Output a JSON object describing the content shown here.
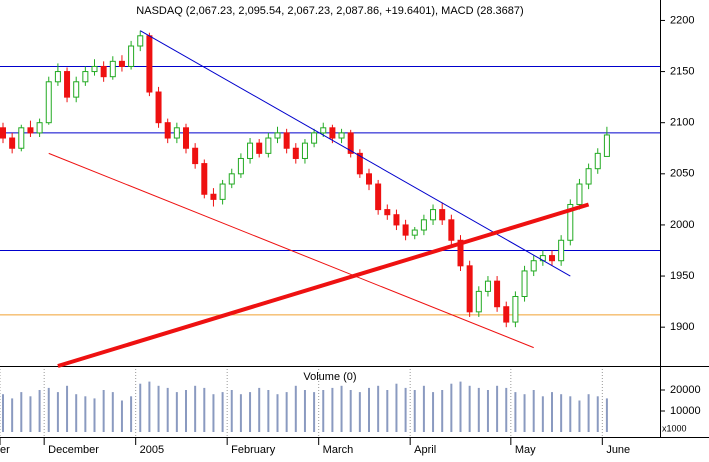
{
  "chart_data": {
    "type": "candlestick",
    "title": "NASDAQ (2,067.23, 2,095.54, 2,067.23, 2,087.86, +19.6401), MACD (28.3687)",
    "categories": [
      "er",
      null,
      null,
      null,
      null,
      "December",
      null,
      null,
      null,
      null,
      null,
      null,
      null,
      null,
      null,
      "2005",
      null,
      null,
      null,
      null,
      null,
      null,
      null,
      null,
      null,
      "February",
      null,
      null,
      null,
      null,
      null,
      null,
      null,
      null,
      null,
      "March",
      null,
      null,
      null,
      null,
      null,
      null,
      null,
      null,
      null,
      "April",
      null,
      null,
      null,
      null,
      null,
      null,
      null,
      null,
      null,
      null,
      "May",
      null,
      null,
      null,
      null,
      null,
      null,
      null,
      null,
      null,
      "June"
    ],
    "open": [
      2095,
      2085,
      2075,
      2095,
      2090,
      2100,
      2140,
      2150,
      2125,
      2140,
      2150,
      2155,
      2145,
      2160,
      2155,
      2175,
      2185,
      2130,
      2100,
      2085,
      2095,
      2075,
      2060,
      2030,
      2025,
      2040,
      2050,
      2065,
      2080,
      2070,
      2085,
      2090,
      2075,
      2065,
      2080,
      2090,
      2095,
      2085,
      2090,
      2070,
      2050,
      2040,
      2015,
      2010,
      2000,
      1990,
      1995,
      2005,
      2015,
      2005,
      1985,
      1960,
      1915,
      1935,
      1945,
      1920,
      1905,
      1930,
      1955,
      1965,
      1970,
      1965,
      1985,
      2020,
      2040,
      2055,
      2067
    ],
    "high": [
      2100,
      2090,
      2098,
      2102,
      2104,
      2145,
      2158,
      2154,
      2145,
      2155,
      2162,
      2160,
      2165,
      2166,
      2180,
      2190,
      2188,
      2135,
      2104,
      2100,
      2099,
      2080,
      2064,
      2036,
      2044,
      2055,
      2070,
      2085,
      2084,
      2090,
      2096,
      2094,
      2080,
      2084,
      2094,
      2100,
      2098,
      2094,
      2093,
      2074,
      2055,
      2044,
      2020,
      2015,
      2005,
      1998,
      2010,
      2020,
      2022,
      2010,
      1990,
      1965,
      1940,
      1950,
      1950,
      1925,
      1935,
      1960,
      1970,
      1975,
      1975,
      1990,
      2025,
      2045,
      2060,
      2075,
      2096
    ],
    "low": [
      2080,
      2070,
      2072,
      2086,
      2086,
      2098,
      2136,
      2120,
      2120,
      2136,
      2146,
      2140,
      2142,
      2150,
      2152,
      2170,
      2126,
      2095,
      2080,
      2080,
      2070,
      2055,
      2026,
      2018,
      2020,
      2036,
      2046,
      2060,
      2066,
      2066,
      2080,
      2070,
      2060,
      2060,
      2076,
      2086,
      2080,
      2080,
      2066,
      2046,
      2034,
      2010,
      2005,
      1995,
      1985,
      1986,
      1990,
      2000,
      2000,
      1980,
      1955,
      1910,
      1910,
      1930,
      1915,
      1900,
      1900,
      1925,
      1950,
      1960,
      1960,
      1960,
      1980,
      2015,
      2035,
      2050,
      2067
    ],
    "close": [
      2085,
      2075,
      2095,
      2090,
      2100,
      2140,
      2150,
      2125,
      2140,
      2150,
      2155,
      2145,
      2160,
      2155,
      2175,
      2185,
      2130,
      2100,
      2085,
      2095,
      2075,
      2060,
      2030,
      2025,
      2040,
      2050,
      2065,
      2080,
      2070,
      2085,
      2090,
      2075,
      2065,
      2080,
      2090,
      2095,
      2085,
      2090,
      2070,
      2050,
      2040,
      2015,
      2010,
      2000,
      1990,
      1995,
      2005,
      2015,
      2005,
      1985,
      1960,
      1915,
      1935,
      1945,
      1920,
      1905,
      1930,
      1955,
      1965,
      1970,
      1965,
      1985,
      2020,
      2040,
      2055,
      2070,
      2088
    ],
    "up_color": "#22aa22",
    "down_color": "#ee1111",
    "ylim": [
      1863,
      2220
    ],
    "yticks": [
      1900,
      1950,
      2000,
      2050,
      2100,
      2150,
      2200
    ],
    "horizontal_lines": [
      {
        "value": 2155,
        "color": "#0000cc"
      },
      {
        "value": 2090,
        "color": "#0000cc"
      },
      {
        "value": 1975,
        "color": "#0000cc"
      },
      {
        "value": 1912,
        "color": "#f0a030"
      }
    ],
    "trend_lines": [
      {
        "x": [
          15,
          62
        ],
        "y": [
          2190,
          1950
        ],
        "color": "#0000cc",
        "width": 1
      },
      {
        "x": [
          5,
          58
        ],
        "y": [
          2070,
          1880
        ],
        "color": "#ee1111",
        "width": 1
      },
      {
        "x": [
          6,
          64
        ],
        "y": [
          1862,
          2020
        ],
        "color": "#ee1111",
        "width": 4
      }
    ],
    "volume": {
      "title": "Volume (0)",
      "unit_label": "x1000",
      "color": "#8a9ac0",
      "values": [
        18000,
        16000,
        19000,
        17000,
        20000,
        21000,
        19000,
        22000,
        18000,
        17000,
        16000,
        20000,
        19000,
        15000,
        17000,
        23000,
        24000,
        22000,
        21000,
        19000,
        20000,
        22000,
        21000,
        18000,
        19000,
        20000,
        18000,
        19000,
        21000,
        20000,
        18000,
        19000,
        22000,
        20000,
        19000,
        20000,
        21000,
        22000,
        20000,
        19000,
        21000,
        22000,
        20000,
        23000,
        21000,
        20000,
        22000,
        19000,
        20000,
        23000,
        24000,
        22000,
        21000,
        20000,
        22000,
        21000,
        19000,
        18000,
        20000,
        17000,
        19000,
        18000,
        17000,
        15000,
        18000,
        17000,
        16000
      ],
      "ylim": [
        0,
        30000
      ],
      "yticks": [
        10000,
        20000
      ]
    }
  }
}
